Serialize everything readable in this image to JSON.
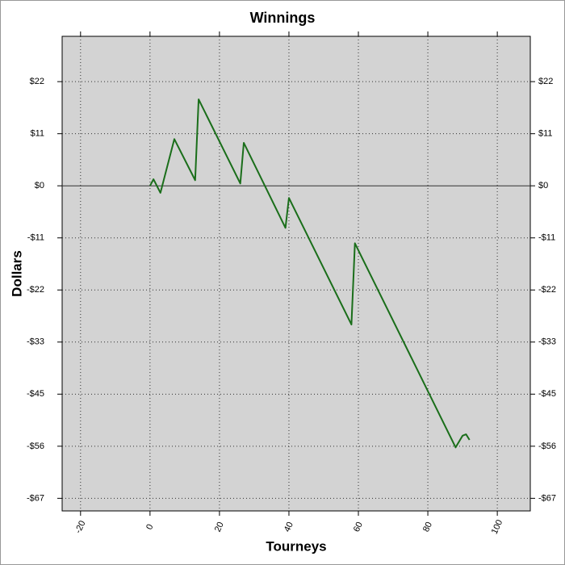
{
  "chart_data": {
    "type": "line",
    "title": "Winnings",
    "x_label": "Tourneys",
    "y_label": "Dollars",
    "x": [
      0,
      1,
      3,
      7,
      13,
      14,
      16,
      26,
      27,
      39,
      40,
      58,
      59,
      88,
      90,
      91,
      92
    ],
    "values": [
      0,
      1.4,
      -1.5,
      10,
      1.2,
      18.5,
      15.5,
      0.5,
      9.2,
      -9,
      -2.6,
      -29.7,
      -12.3,
      -56,
      -53.5,
      -53.2,
      -54.4
    ],
    "color": "#1a6e1a",
    "xlim": [
      -25.3,
      109.5
    ],
    "xticks": [
      -20,
      0,
      20,
      40,
      60,
      80,
      100
    ],
    "ylim": [
      -69.6,
      32
    ],
    "yticks": [
      {
        "value": 22.3,
        "label": "$22"
      },
      {
        "value": 11.15,
        "label": "$11"
      },
      {
        "value": 0,
        "label": "$0"
      },
      {
        "value": -11.15,
        "label": "-$11"
      },
      {
        "value": -22.3,
        "label": "-$22"
      },
      {
        "value": -33.45,
        "label": "-$33"
      },
      {
        "value": -44.6,
        "label": "-$45"
      },
      {
        "value": -55.75,
        "label": "-$56"
      },
      {
        "value": -66.9,
        "label": "-$67"
      }
    ],
    "grid": true
  }
}
